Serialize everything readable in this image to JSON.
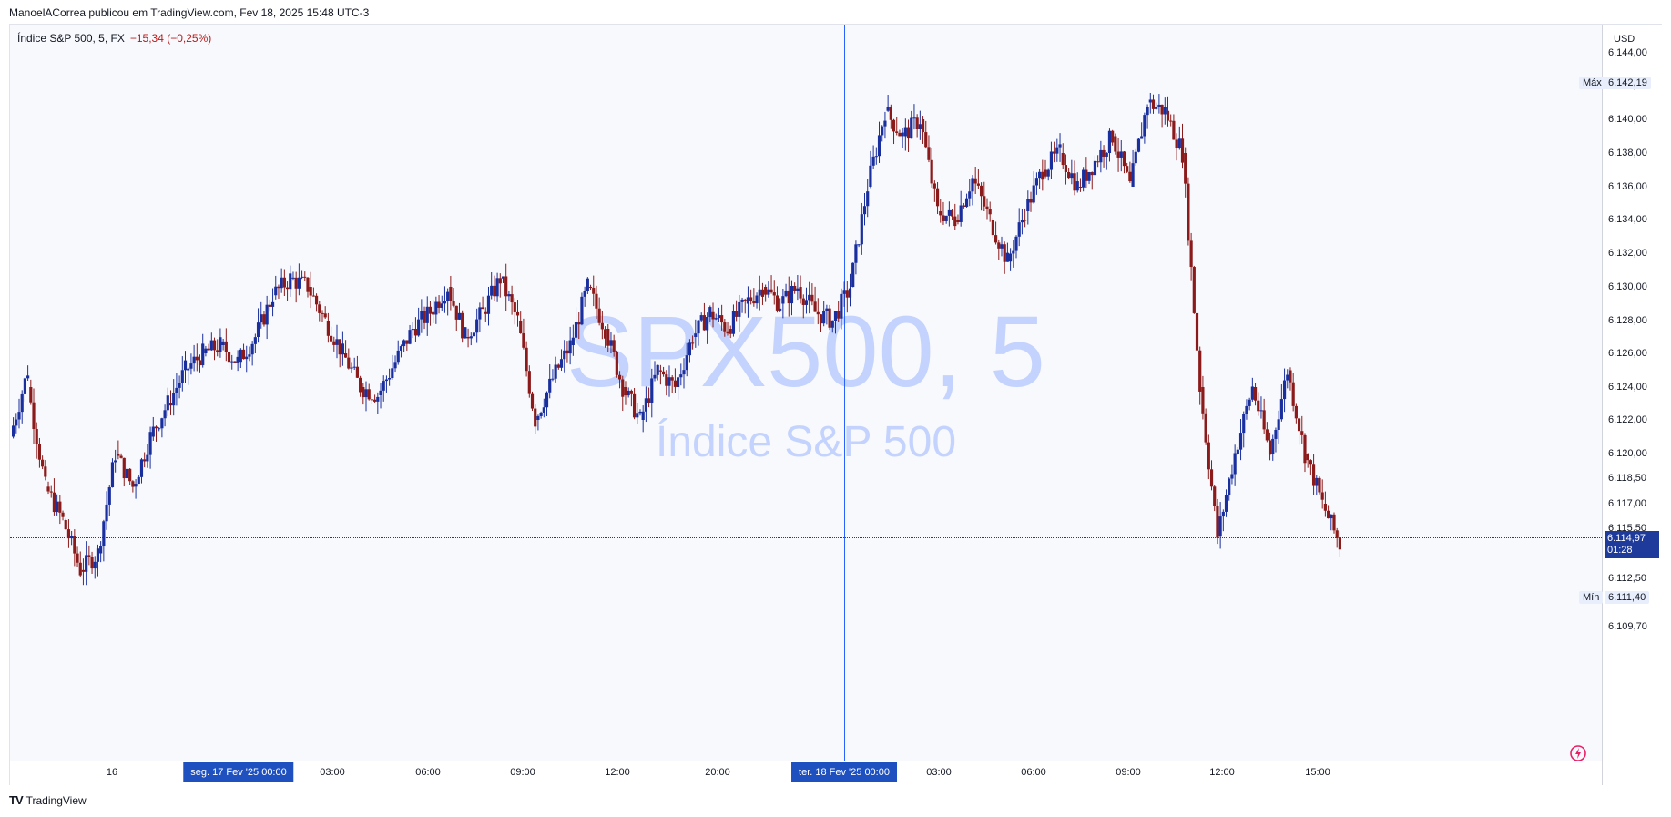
{
  "header": {
    "text": "ManoelACorrea publicou em TradingView.com, Fev 18, 2025 15:48 UTC-3"
  },
  "legend": {
    "symbol": "Índice S&P 500, 5, FX",
    "change": "−15,34 (−0,25%)"
  },
  "watermark": {
    "line1": "SPX500, 5",
    "line2": "Índice S&P 500"
  },
  "price_axis": {
    "currency": "USD",
    "ticks": [
      "6.144,00",
      "6.142,00",
      "6.140,00",
      "6.138,00",
      "6.136,00",
      "6.134,00",
      "6.132,00",
      "6.130,00",
      "6.128,00",
      "6.126,00",
      "6.124,00",
      "6.122,00",
      "6.120,00",
      "6.118,50",
      "6.117,00",
      "6.115,50",
      "6.112,50",
      "6.109,70"
    ],
    "tick_values": [
      6144,
      6142,
      6140,
      6138,
      6136,
      6134,
      6132,
      6130,
      6128,
      6126,
      6124,
      6122,
      6120,
      6118.5,
      6117,
      6115.5,
      6112.5,
      6109.7
    ],
    "max_label": "Máx",
    "max_value": "6.142,19",
    "max_num": 6142.19,
    "min_label": "Mín",
    "min_value": "6.111,40",
    "min_num": 6111.4,
    "current_value": "6.114,97",
    "current_num": 6114.97,
    "countdown": "01:28"
  },
  "time_axis": {
    "labels": [
      "16",
      "03:00",
      "06:00",
      "09:00",
      "12:00",
      "20:00",
      "03:00",
      "06:00",
      "09:00",
      "12:00",
      "15:00"
    ],
    "selected": [
      "seg. 17 Fev '25   00:00",
      "ter. 18 Fev '25   00:00"
    ]
  },
  "footer": {
    "logo": "TradingView"
  },
  "colors": {
    "up": "#1a2f9e",
    "down": "#8b1a1a",
    "accent": "#2962ff"
  },
  "chart_data": {
    "type": "candlestick",
    "title": "",
    "ylim": [
      6108.5,
      6145
    ],
    "anchors": [
      [
        6121,
        6125
      ],
      [
        6124,
        6118
      ],
      [
        6118,
        6116
      ],
      [
        6116,
        6113
      ],
      [
        6113,
        6114
      ],
      [
        6114,
        6120
      ],
      [
        6120,
        6118
      ],
      [
        6118,
        6121
      ],
      [
        6121,
        6123
      ],
      [
        6123,
        6125
      ],
      [
        6125,
        6126
      ],
      [
        6126,
        6126.5
      ],
      [
        6126.5,
        6125.5
      ],
      [
        6125.5,
        6127
      ],
      [
        6127,
        6129.5
      ],
      [
        6129.5,
        6130.5
      ],
      [
        6130.5,
        6130
      ],
      [
        6130,
        6128
      ],
      [
        6128,
        6126
      ],
      [
        6126,
        6124
      ],
      [
        6124,
        6123.5
      ],
      [
        6123.5,
        6125.5
      ],
      [
        6125.5,
        6127.5
      ],
      [
        6127.5,
        6128.5
      ],
      [
        6128.5,
        6130
      ],
      [
        6130,
        6127
      ],
      [
        6127,
        6128.5
      ],
      [
        6128.5,
        6130.5
      ],
      [
        6130.5,
        6128
      ],
      [
        6128,
        6122
      ],
      [
        6122,
        6124.5
      ],
      [
        6124.5,
        6126.5
      ],
      [
        6126.5,
        6130
      ],
      [
        6130,
        6127.5
      ],
      [
        6127.5,
        6124
      ],
      [
        6124,
        6122
      ],
      [
        6122,
        6125
      ],
      [
        6125,
        6124
      ],
      [
        6124,
        6127
      ],
      [
        6127,
        6128.5
      ],
      [
        6128.5,
        6127.5
      ],
      [
        6127.5,
        6129
      ],
      [
        6129,
        6130
      ],
      [
        6130,
        6129
      ],
      [
        6129,
        6130
      ],
      [
        6130,
        6128.5
      ],
      [
        6128.5,
        6128
      ],
      [
        6128,
        6130
      ],
      [
        6130,
        6136
      ],
      [
        6136,
        6140.5
      ],
      [
        6140.5,
        6139
      ],
      [
        6139,
        6140
      ],
      [
        6140,
        6134.5
      ],
      [
        6134.5,
        6134
      ],
      [
        6134,
        6136.5
      ],
      [
        6136.5,
        6134
      ],
      [
        6134,
        6131.5
      ],
      [
        6131.5,
        6134.5
      ],
      [
        6134.5,
        6137
      ],
      [
        6137,
        6138
      ],
      [
        6138,
        6136
      ],
      [
        6136,
        6137.5
      ],
      [
        6137.5,
        6139
      ],
      [
        6139,
        6136
      ],
      [
        6136,
        6141
      ],
      [
        6141,
        6140.5
      ],
      [
        6140.5,
        6138
      ],
      [
        6138,
        6124
      ],
      [
        6124,
        6115
      ],
      [
        6115,
        6120
      ],
      [
        6120,
        6124
      ],
      [
        6124,
        6120
      ],
      [
        6120,
        6125
      ],
      [
        6125,
        6120
      ],
      [
        6120,
        6117
      ],
      [
        6117,
        6114.5
      ]
    ]
  }
}
